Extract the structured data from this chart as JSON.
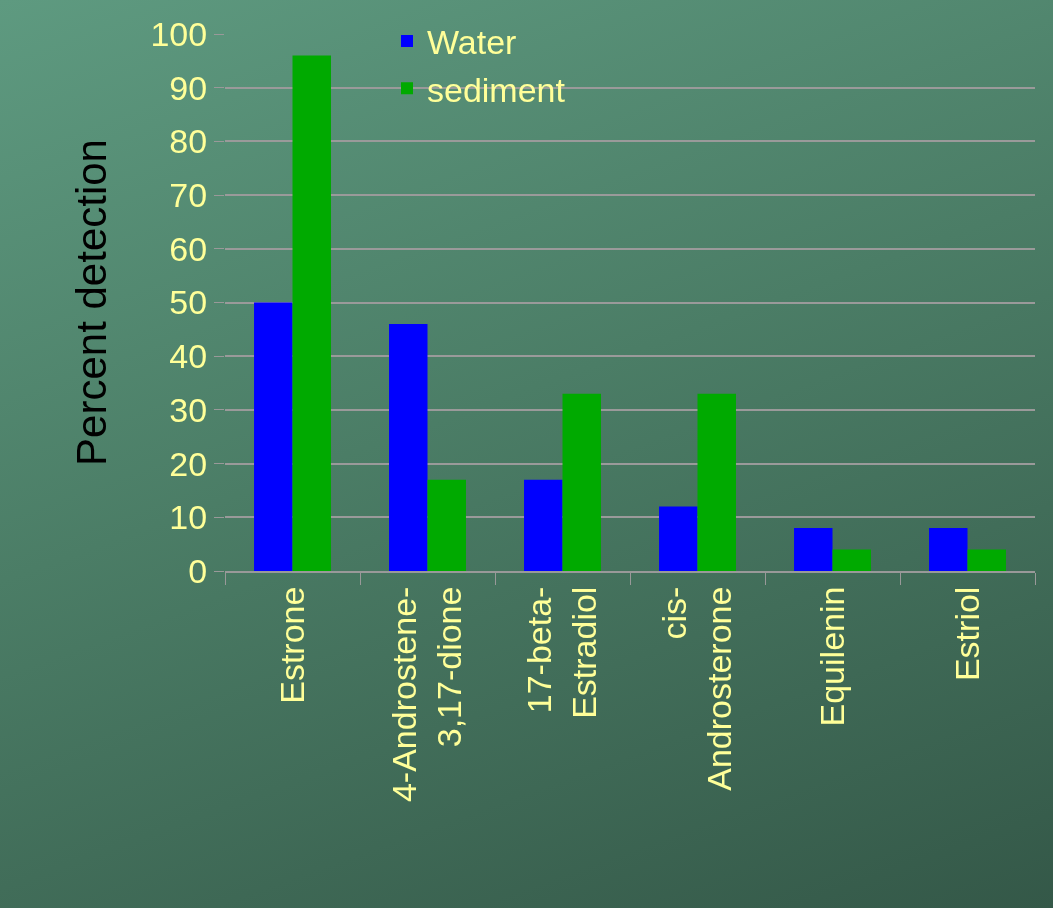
{
  "chart_data": {
    "type": "bar",
    "ylabel": "Percent detection",
    "categories": [
      "Estrone",
      "4-Androstene-\n3,17-dione",
      "17-beta-\nEstradiol",
      "cis-\nAndrosterone",
      "Equilenin",
      "Estriol"
    ],
    "series": [
      {
        "name": "Water",
        "color": "#0000ff",
        "values": [
          50,
          46,
          17,
          12,
          8,
          8
        ]
      },
      {
        "name": "sediment",
        "color": "#00aa00",
        "values": [
          96,
          17,
          33,
          33,
          4,
          4
        ]
      }
    ],
    "ylim": [
      0,
      100
    ],
    "yticks": [
      0,
      10,
      20,
      30,
      40,
      50,
      60,
      70,
      80,
      90,
      100
    ],
    "grid": "y",
    "legend": "top"
  }
}
